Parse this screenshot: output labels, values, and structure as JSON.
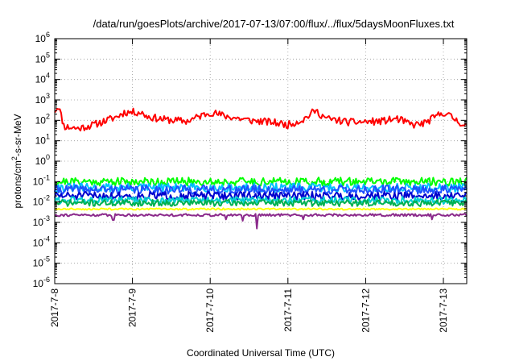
{
  "chart_data": {
    "type": "line",
    "title": "/data/run/goesPlots/archive/2017-07-13/07:00/flux/../flux/5daysMoonFluxes.txt",
    "xlabel": "Coordinated Universal Time (UTC)",
    "ylabel": {
      "pre": "protons/cm",
      "sup": "2",
      "post": "-s-sr-MeV"
    },
    "y_scale": "log",
    "ylim_exponents": [
      -6,
      6
    ],
    "y_tick_base": "10",
    "y_tick_exponents": [
      "-6",
      "-5",
      "-4",
      "-3",
      "-2",
      "-1",
      "0",
      "1",
      "2",
      "3",
      "4",
      "5",
      "6"
    ],
    "x_tick_labels": [
      "2017-7-8",
      "2017-7-9",
      "2017-7-10",
      "2017-7-11",
      "2017-7-12",
      "2017-7-13"
    ],
    "x_range_days": [
      0,
      5.3
    ],
    "grid": true,
    "legend": "none",
    "series": [
      {
        "color": "#ff0000",
        "level": 100,
        "spread": 0.18,
        "wave": 0.3,
        "seed": 11,
        "anchors": [
          [
            0,
            300
          ],
          [
            0.05,
            500
          ],
          [
            0.12,
            50
          ],
          [
            0.3,
            40
          ],
          [
            0.5,
            60
          ],
          [
            0.8,
            150
          ],
          [
            0.9,
            250
          ],
          [
            1.1,
            250
          ],
          [
            1.2,
            150
          ],
          [
            1.4,
            110
          ],
          [
            1.7,
            90
          ],
          [
            2.0,
            250
          ],
          [
            2.2,
            160
          ],
          [
            2.5,
            100
          ],
          [
            2.8,
            80
          ],
          [
            3.0,
            60
          ],
          [
            3.2,
            110
          ],
          [
            3.35,
            300
          ],
          [
            3.5,
            120
          ],
          [
            3.8,
            80
          ],
          [
            4.2,
            90
          ],
          [
            4.4,
            120
          ],
          [
            4.6,
            60
          ],
          [
            4.75,
            70
          ],
          [
            5.0,
            250
          ],
          [
            5.3,
            50
          ]
        ]
      },
      {
        "color": "#00ff00",
        "level": 0.1,
        "spread": 0.2,
        "seed": 21
      },
      {
        "color": "#00bfff",
        "level": 0.05,
        "spread": 0.22,
        "seed": 31
      },
      {
        "color": "#1e50ff",
        "level": 0.04,
        "spread": 0.22,
        "seed": 41
      },
      {
        "color": "#0000cd",
        "level": 0.02,
        "spread": 0.2,
        "seed": 51
      },
      {
        "color": "#00ced1",
        "level": 0.012,
        "spread": 0.18,
        "seed": 61
      },
      {
        "color": "#00b050",
        "level": 0.009,
        "spread": 0.16,
        "seed": 71
      },
      {
        "color": "#ffff00",
        "level": 0.0045,
        "spread": 0.04,
        "seed": 81
      },
      {
        "color": "#8b2a8b",
        "level": 0.0023,
        "spread": 0.06,
        "seed": 91,
        "dips": [
          [
            0.75,
            0.0013
          ],
          [
            2.2,
            0.0014
          ],
          [
            2.42,
            0.0012
          ],
          [
            2.6,
            0.0005
          ],
          [
            3.2,
            0.0014
          ],
          [
            4.85,
            0.0014
          ]
        ]
      }
    ]
  }
}
